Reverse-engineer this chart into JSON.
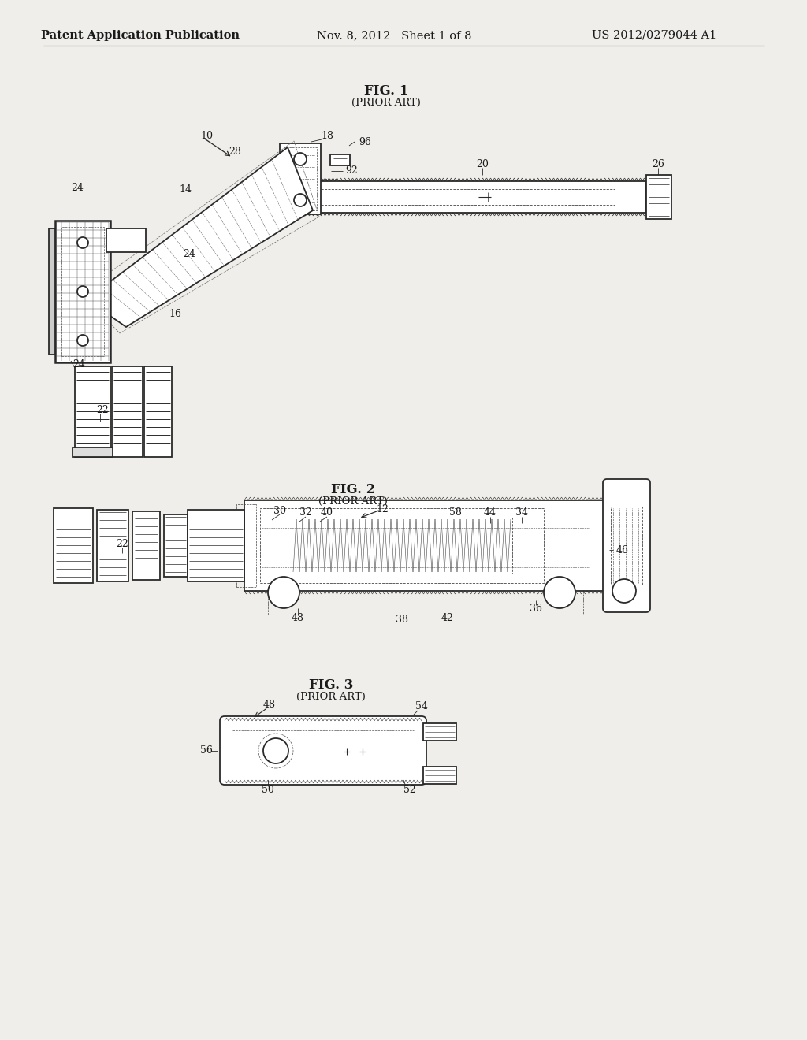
{
  "bg_color": "#f0eeea",
  "line_color": "#2a2a2a",
  "text_color": "#1a1a1a",
  "header_left": "Patent Application Publication",
  "header_mid": "Nov. 8, 2012   Sheet 1 of 8",
  "header_right": "US 2012/0279044 A1",
  "fig1_title": "FIG. 1",
  "fig1_sub": "(PRIOR ART)",
  "fig2_title": "FIG. 2",
  "fig2_sub": "(PRIOR ART)",
  "fig3_title": "FIG. 3",
  "fig3_sub": "(PRIOR ART)",
  "header_fontsize": 10.5,
  "fig_title_fontsize": 12,
  "label_fontsize": 9
}
